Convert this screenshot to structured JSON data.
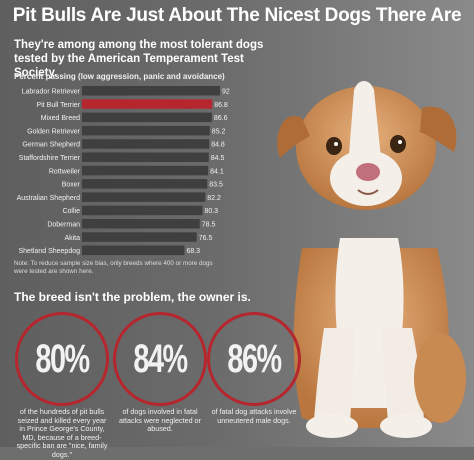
{
  "header": {
    "title": "Pit Bulls Are Just About The Nicest Dogs There Are",
    "subtitle": "They're among among the most tolerant dogs tested by the American Temperament Test Society.",
    "caption": "Percent passing (low aggression, panic and avoidance)"
  },
  "chart_data": {
    "type": "bar",
    "orientation": "horizontal",
    "categories": [
      "Labrador Retriever",
      "Pit Bull Terrier",
      "Mixed Breed",
      "Golden Retriever",
      "German Shepherd",
      "Staffordshire Terrier",
      "Rottweiler",
      "Boxer",
      "Australian Shepherd",
      "Collie",
      "Doberman",
      "Akita",
      "Shetland Sheepdog"
    ],
    "values": [
      92,
      86.8,
      86.6,
      85.2,
      84.8,
      84.5,
      84.1,
      83.5,
      82.2,
      80.3,
      78.5,
      76.5,
      68.3
    ],
    "value_labels": [
      "92",
      "86.8",
      "86.6",
      "85.2",
      "84.8",
      "84.5",
      "84.1",
      "83.5",
      "82.2",
      "80.3",
      "78.5",
      "76.5",
      "68.3"
    ],
    "highlight_category": "Pit Bull Terrier",
    "colors": {
      "bar": "#3f3f3f",
      "highlight": "#b5262d"
    }
  },
  "note": "Note: To reduce sample size bias, only breeds where 400 or more dogs were tested are shown here.",
  "section": {
    "heading": "The breed isn't the problem, the owner is."
  },
  "stats": [
    {
      "value": "80%",
      "text": "of the hundreds of pit bulls seized and killed every year in Prince George's County, MD, because of a breed-specific ban are \"nice, family dogs.\""
    },
    {
      "value": "84%",
      "text": "of dogs involved in fatal attacks were neglected or abused."
    },
    {
      "value": "86%",
      "text": "of fatal dog attacks involve unneutered male dogs."
    }
  ],
  "colors": {
    "accent": "#b5262d"
  }
}
